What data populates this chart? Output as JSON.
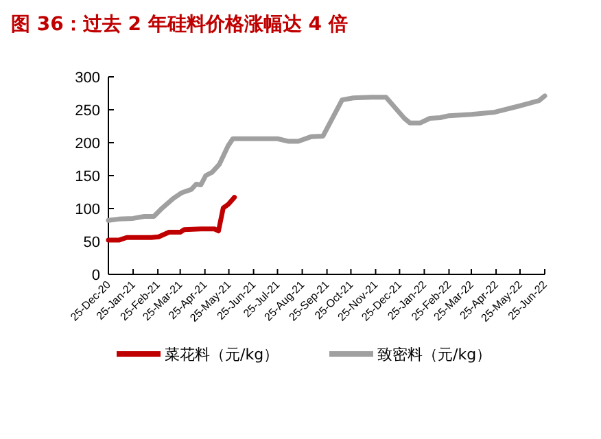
{
  "chart_data": {
    "type": "line",
    "title": "图 36：过去 2 年硅料价格涨幅达 4 倍",
    "xlim": [
      "2020-12-25",
      "2022-06-25"
    ],
    "xticks": [
      {
        "value": "2020-12-25",
        "label": "25-Dec-20"
      },
      {
        "value": "2021-01-25",
        "label": "25-Jan-21"
      },
      {
        "value": "2021-02-25",
        "label": "25-Feb-21"
      },
      {
        "value": "2021-03-25",
        "label": "25-Mar-21"
      },
      {
        "value": "2021-04-25",
        "label": "25-Apr-21"
      },
      {
        "value": "2021-05-25",
        "label": "25-May-21"
      },
      {
        "value": "2021-06-25",
        "label": "25-Jun-21"
      },
      {
        "value": "2021-07-25",
        "label": "25-Jul-21"
      },
      {
        "value": "2021-08-25",
        "label": "25-Aug-21"
      },
      {
        "value": "2021-09-25",
        "label": "25-Sep-21"
      },
      {
        "value": "2021-10-25",
        "label": "25-Oct-21"
      },
      {
        "value": "2021-11-25",
        "label": "25-Nov-21"
      },
      {
        "value": "2021-12-25",
        "label": "25-Dec-21"
      },
      {
        "value": "2022-01-25",
        "label": "25-Jan-22"
      },
      {
        "value": "2022-02-25",
        "label": "25-Feb-22"
      },
      {
        "value": "2022-03-25",
        "label": "25-Mar-22"
      },
      {
        "value": "2022-04-25",
        "label": "25-Apr-22"
      },
      {
        "value": "2022-05-25",
        "label": "25-May-22"
      },
      {
        "value": "2022-06-25",
        "label": "25-Jun-22"
      }
    ],
    "ylim": [
      0,
      300
    ],
    "yticks": [
      0,
      50,
      100,
      150,
      200,
      250,
      300
    ],
    "grid": false,
    "legend": "bottom",
    "line_style": "solid",
    "series": [
      {
        "name": "菜花料（元/kg）",
        "color": "#c00000",
        "x": [
          "2020-12-25",
          "2021-01-07",
          "2021-01-17",
          "2021-02-17",
          "2021-02-26",
          "2021-03-11",
          "2021-03-25",
          "2021-03-30",
          "2021-04-20",
          "2021-05-07",
          "2021-05-12",
          "2021-05-18",
          "2021-05-24",
          "2021-06-01"
        ],
        "values": [
          52,
          52,
          56,
          56,
          57,
          64,
          64,
          68,
          69,
          69,
          66,
          101,
          106,
          117
        ]
      },
      {
        "name": "致密料（元/kg）",
        "color": "#a0a0a0",
        "x": [
          "2020-12-25",
          "2021-01-07",
          "2021-01-25",
          "2021-02-08",
          "2021-02-20",
          "2021-03-01",
          "2021-03-16",
          "2021-03-27",
          "2021-04-08",
          "2021-04-14",
          "2021-04-20",
          "2021-04-26",
          "2021-05-04",
          "2021-05-13",
          "2021-05-24",
          "2021-05-30",
          "2021-06-10",
          "2021-07-25",
          "2021-08-08",
          "2021-08-20",
          "2021-09-05",
          "2021-09-20",
          "2021-10-14",
          "2021-10-28",
          "2021-11-20",
          "2021-12-08",
          "2021-12-31",
          "2022-01-07",
          "2022-01-20",
          "2022-02-01",
          "2022-02-14",
          "2022-02-25",
          "2022-03-25",
          "2022-04-22",
          "2022-05-25",
          "2022-06-18",
          "2022-06-25"
        ],
        "values": [
          82,
          84,
          85,
          88,
          88,
          99,
          115,
          124,
          129,
          137,
          136,
          150,
          155,
          167,
          195,
          206,
          206,
          206,
          202,
          202,
          209,
          210,
          265,
          268,
          269,
          269,
          237,
          230,
          230,
          237,
          238,
          241,
          243,
          246,
          256,
          264,
          271
        ]
      }
    ]
  }
}
